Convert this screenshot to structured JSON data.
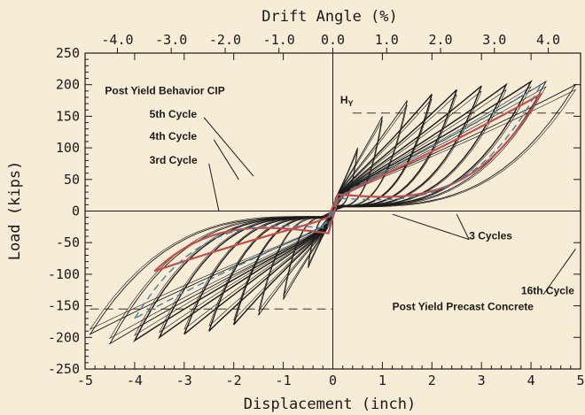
{
  "chart_data": {
    "type": "line",
    "title": "",
    "xlabel": "Displacement (inch)",
    "ylabel": "Load (kips)",
    "x2label": "Drift Angle (%)",
    "xlim": [
      -5,
      5
    ],
    "ylim": [
      -250,
      250
    ],
    "x2lim": [
      -4.6,
      4.6
    ],
    "grid": false,
    "xticks": [
      -5,
      -4,
      -3,
      -2,
      -1,
      0,
      1,
      2,
      3,
      4,
      5
    ],
    "xtick_labels": [
      "-5",
      "-4",
      "-3",
      "-2",
      "-1",
      "0",
      "1",
      "2",
      "3",
      "4",
      "5"
    ],
    "yticks": [
      -250,
      -200,
      -150,
      -100,
      -50,
      0,
      50,
      100,
      150,
      200,
      250
    ],
    "ytick_labels": [
      "-250",
      "-200",
      "-150",
      "-100",
      "-50",
      "0",
      "50",
      "100",
      "150",
      "200",
      "250"
    ],
    "x2ticks": [
      -4,
      -3,
      -2,
      -1,
      0,
      1,
      2,
      3,
      4
    ],
    "x2tick_labels": [
      "-4.0",
      "-3.0",
      "-2.0",
      "-1.0",
      "0.0",
      "1.0",
      "2.0",
      "3.0",
      "4.0"
    ],
    "colors": {
      "background": "#f7ecd6",
      "axis": "#1a1a1a",
      "cip": "#c0504d",
      "precast": "#1a1a1a",
      "dashed": "#4a7fa0"
    },
    "reference_lines": {
      "hy_value": 155,
      "hy_label": "H",
      "hy_label_sub": "Y"
    },
    "series": [
      {
        "style": "precast",
        "loops": [
          {
            "umax": 0.5,
            "fmax": 100,
            "umin": -0.5,
            "fmin": -90
          },
          {
            "umax": 1.0,
            "fmax": 150,
            "umin": -1.0,
            "fmin": -140
          },
          {
            "umax": 1.5,
            "fmax": 175,
            "umin": -1.5,
            "fmin": -165
          },
          {
            "umax": 2.0,
            "fmax": 185,
            "umin": -2.0,
            "fmin": -180
          },
          {
            "umax": 2.5,
            "fmax": 192,
            "umin": -2.5,
            "fmin": -190
          },
          {
            "umax": 3.0,
            "fmax": 198,
            "umin": -3.0,
            "fmin": -195
          },
          {
            "umax": 3.5,
            "fmax": 200,
            "umin": -3.5,
            "fmin": -200
          },
          {
            "umax": 4.0,
            "fmax": 205,
            "umin": -4.0,
            "fmin": -205
          },
          {
            "umax": 4.3,
            "fmax": 205,
            "umin": -4.5,
            "fmin": -210
          },
          {
            "umax": 4.9,
            "fmax": 200,
            "umin": -4.9,
            "fmin": -195
          }
        ]
      },
      {
        "style": "cip",
        "loops": [
          {
            "umax": 4.2,
            "fmax": 185,
            "umin": -3.6,
            "fmin": -95
          }
        ]
      },
      {
        "style": "dashed",
        "loops": [
          {
            "umax": 4.2,
            "fmax": 200,
            "umin": -4.0,
            "fmin": -170
          }
        ]
      }
    ],
    "annotations": [
      {
        "text": "Post Yield Behavior CIP",
        "x": -4.6,
        "y": 185
      },
      {
        "text": "5th Cycle",
        "x": -3.7,
        "y": 148
      },
      {
        "text": "4th Cycle",
        "x": -3.7,
        "y": 113
      },
      {
        "text": "3rd Cycle",
        "x": -3.7,
        "y": 75
      },
      {
        "text": "3 Cycles",
        "x": 2.75,
        "y": -45
      },
      {
        "text": "16th Cycle",
        "x": 3.8,
        "y": -132
      },
      {
        "text": "Post Yield Precast Concrete",
        "x": 1.2,
        "y": -157
      }
    ]
  }
}
